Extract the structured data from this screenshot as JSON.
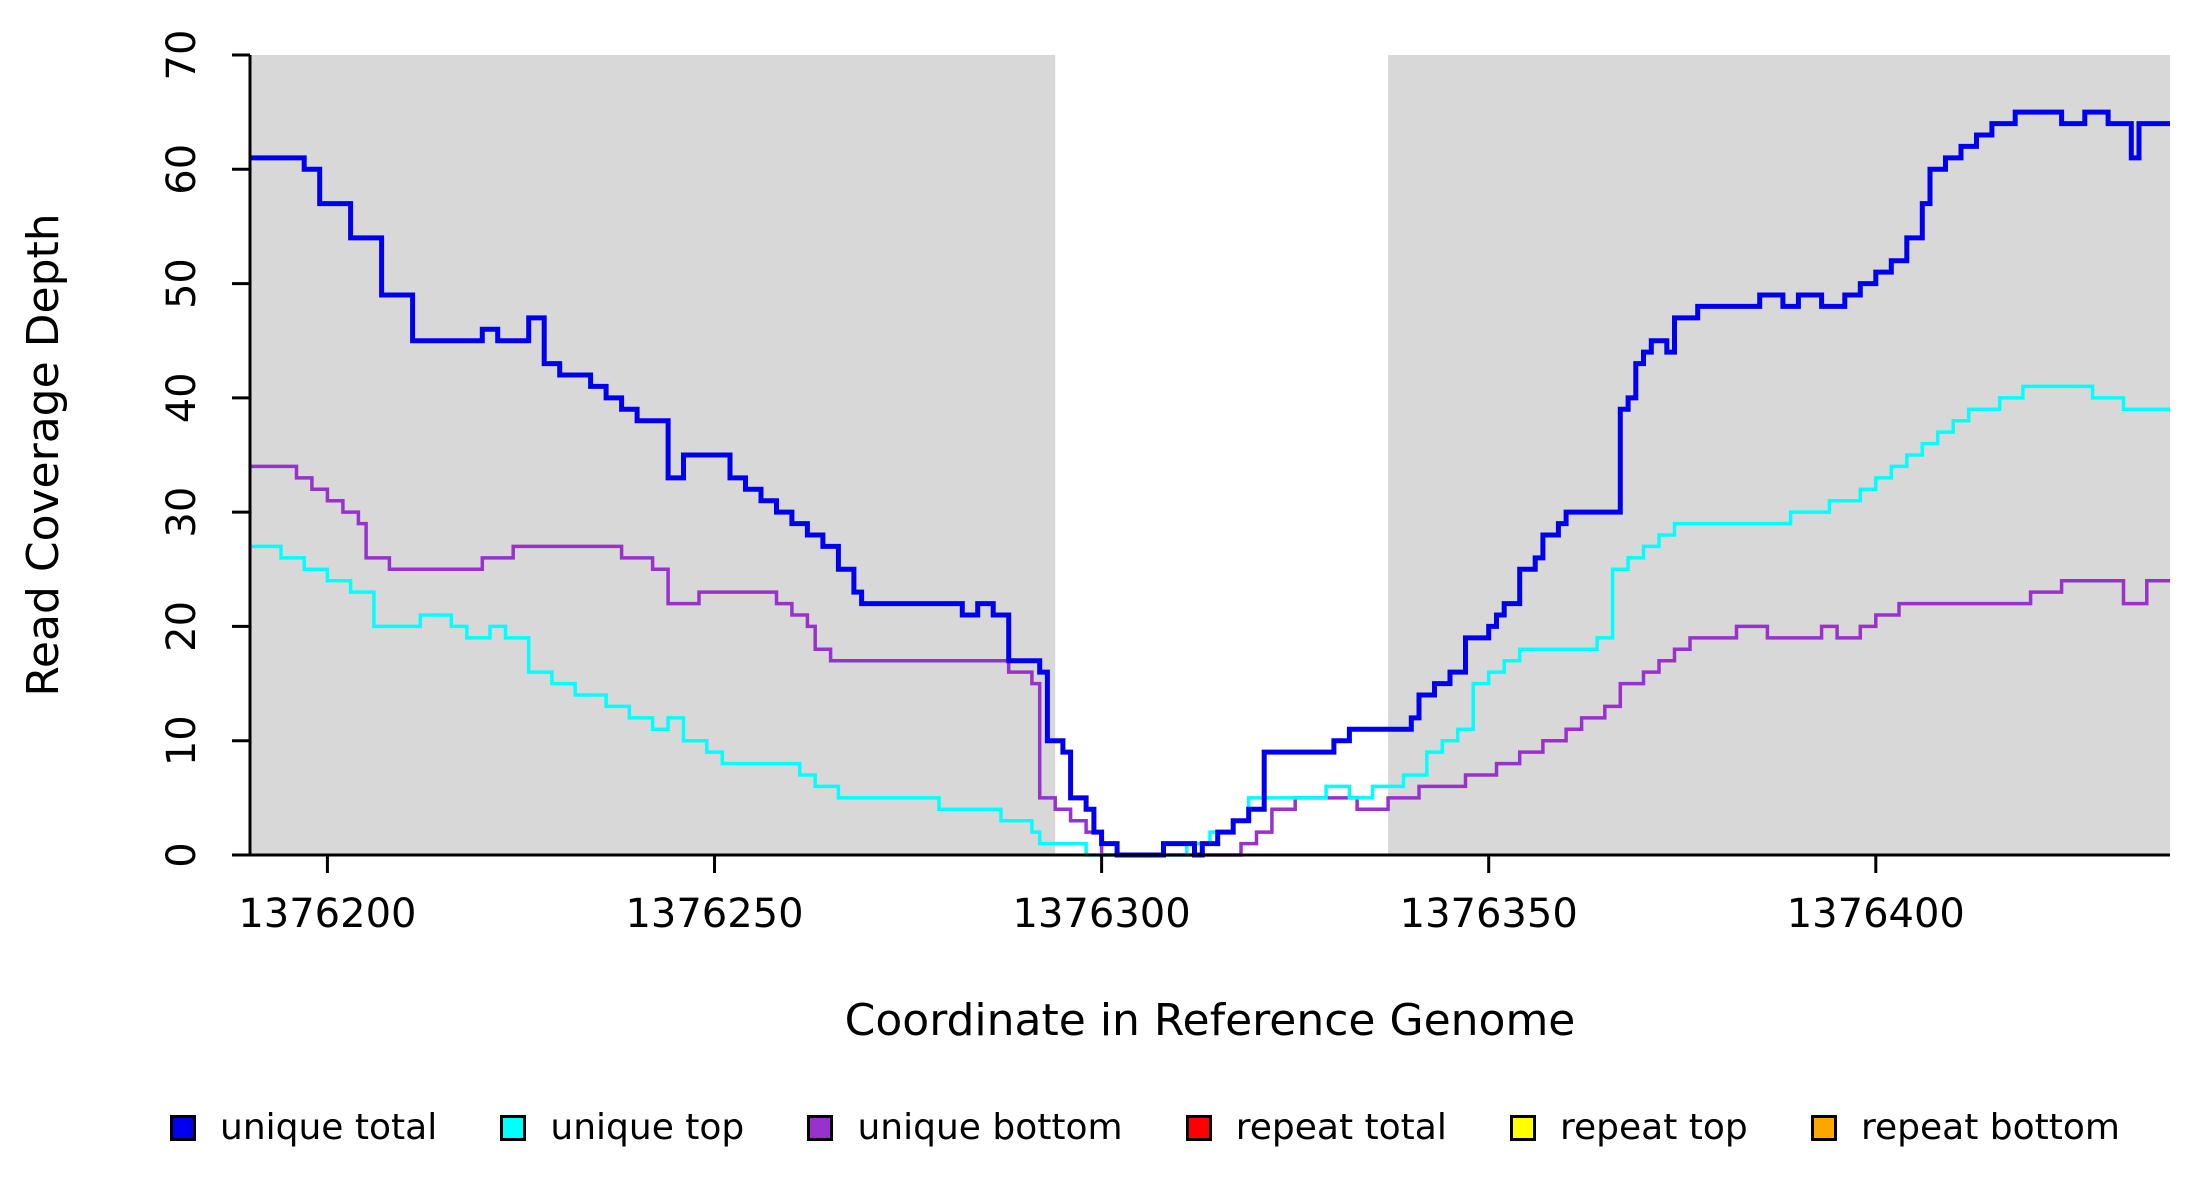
{
  "chart_data": {
    "type": "line",
    "subtype": "step",
    "title": "",
    "xlabel": "Coordinate in Reference Genome",
    "ylabel": "Read Coverage Depth",
    "xlim": [
      1376190,
      1376438
    ],
    "ylim": [
      0,
      70
    ],
    "x_ticks": [
      1376200,
      1376250,
      1376300,
      1376350,
      1376400
    ],
    "y_ticks": [
      0,
      10,
      20,
      30,
      40,
      50,
      60,
      70
    ],
    "grid": false,
    "background_color": "#FFFFFF",
    "axis_color": "#000000",
    "legend_position": "bottom",
    "shaded_regions": [
      {
        "x0": 1376190,
        "x1": 1376294,
        "color": "#D8D8D8"
      },
      {
        "x0": 1376337,
        "x1": 1376438,
        "color": "#D8D8D8"
      }
    ],
    "series": [
      {
        "name": "repeat total",
        "color": "#FF0000",
        "line_width": 3,
        "points": [
          [
            1376190,
            0
          ],
          [
            1376438,
            0
          ]
        ]
      },
      {
        "name": "repeat top",
        "color": "#FFFF00",
        "line_width": 3,
        "points": [
          [
            1376190,
            0
          ],
          [
            1376438,
            0
          ]
        ]
      },
      {
        "name": "repeat bottom",
        "color": "#FFA500",
        "line_width": 3,
        "points": [
          [
            1376190,
            0
          ],
          [
            1376438,
            0
          ]
        ]
      },
      {
        "name": "unique bottom",
        "color": "#9932CC",
        "line_width": 3.5,
        "points": [
          [
            1376190,
            34
          ],
          [
            1376196,
            33
          ],
          [
            1376198,
            32
          ],
          [
            1376200,
            31
          ],
          [
            1376202,
            30
          ],
          [
            1376204,
            29
          ],
          [
            1376205,
            26
          ],
          [
            1376208,
            25
          ],
          [
            1376220,
            26
          ],
          [
            1376224,
            27
          ],
          [
            1376238,
            26
          ],
          [
            1376242,
            25
          ],
          [
            1376244,
            22
          ],
          [
            1376248,
            23
          ],
          [
            1376258,
            22
          ],
          [
            1376260,
            21
          ],
          [
            1376262,
            20
          ],
          [
            1376263,
            18
          ],
          [
            1376265,
            17
          ],
          [
            1376288,
            16
          ],
          [
            1376291,
            15
          ],
          [
            1376292,
            5
          ],
          [
            1376294,
            4
          ],
          [
            1376296,
            3
          ],
          [
            1376298,
            2
          ],
          [
            1376300,
            0
          ],
          [
            1376318,
            1
          ],
          [
            1376320,
            2
          ],
          [
            1376322,
            4
          ],
          [
            1376325,
            5
          ],
          [
            1376333,
            4
          ],
          [
            1376337,
            5
          ],
          [
            1376341,
            6
          ],
          [
            1376347,
            7
          ],
          [
            1376351,
            8
          ],
          [
            1376354,
            9
          ],
          [
            1376357,
            10
          ],
          [
            1376360,
            11
          ],
          [
            1376362,
            12
          ],
          [
            1376365,
            13
          ],
          [
            1376367,
            15
          ],
          [
            1376370,
            16
          ],
          [
            1376372,
            17
          ],
          [
            1376374,
            18
          ],
          [
            1376376,
            19
          ],
          [
            1376382,
            20
          ],
          [
            1376386,
            19
          ],
          [
            1376393,
            20
          ],
          [
            1376395,
            19
          ],
          [
            1376398,
            20
          ],
          [
            1376400,
            21
          ],
          [
            1376403,
            22
          ],
          [
            1376420,
            23
          ],
          [
            1376424,
            24
          ],
          [
            1376432,
            22
          ],
          [
            1376435,
            24
          ],
          [
            1376438,
            24
          ]
        ]
      },
      {
        "name": "unique top",
        "color": "#00FFFF",
        "line_width": 3.5,
        "points": [
          [
            1376190,
            27
          ],
          [
            1376194,
            26
          ],
          [
            1376197,
            25
          ],
          [
            1376200,
            24
          ],
          [
            1376203,
            23
          ],
          [
            1376206,
            20
          ],
          [
            1376212,
            21
          ],
          [
            1376216,
            20
          ],
          [
            1376218,
            19
          ],
          [
            1376221,
            20
          ],
          [
            1376223,
            19
          ],
          [
            1376226,
            16
          ],
          [
            1376229,
            15
          ],
          [
            1376232,
            14
          ],
          [
            1376236,
            13
          ],
          [
            1376239,
            12
          ],
          [
            1376242,
            11
          ],
          [
            1376244,
            12
          ],
          [
            1376246,
            10
          ],
          [
            1376249,
            9
          ],
          [
            1376251,
            8
          ],
          [
            1376261,
            7
          ],
          [
            1376263,
            6
          ],
          [
            1376266,
            5
          ],
          [
            1376279,
            4
          ],
          [
            1376287,
            3
          ],
          [
            1376291,
            2
          ],
          [
            1376292,
            1
          ],
          [
            1376298,
            0
          ],
          [
            1376311,
            1
          ],
          [
            1376314,
            2
          ],
          [
            1376317,
            3
          ],
          [
            1376319,
            5
          ],
          [
            1376329,
            6
          ],
          [
            1376332,
            5
          ],
          [
            1376335,
            6
          ],
          [
            1376339,
            7
          ],
          [
            1376342,
            9
          ],
          [
            1376344,
            10
          ],
          [
            1376346,
            11
          ],
          [
            1376348,
            15
          ],
          [
            1376350,
            16
          ],
          [
            1376352,
            17
          ],
          [
            1376354,
            18
          ],
          [
            1376364,
            19
          ],
          [
            1376366,
            25
          ],
          [
            1376368,
            26
          ],
          [
            1376370,
            27
          ],
          [
            1376372,
            28
          ],
          [
            1376374,
            29
          ],
          [
            1376389,
            30
          ],
          [
            1376394,
            31
          ],
          [
            1376398,
            32
          ],
          [
            1376400,
            33
          ],
          [
            1376402,
            34
          ],
          [
            1376404,
            35
          ],
          [
            1376406,
            36
          ],
          [
            1376408,
            37
          ],
          [
            1376410,
            38
          ],
          [
            1376412,
            39
          ],
          [
            1376416,
            40
          ],
          [
            1376419,
            41
          ],
          [
            1376428,
            40
          ],
          [
            1376432,
            39
          ],
          [
            1376438,
            39
          ]
        ]
      },
      {
        "name": "unique total",
        "color": "#0000EE",
        "line_width": 5,
        "points": [
          [
            1376190,
            61
          ],
          [
            1376197,
            60
          ],
          [
            1376199,
            57
          ],
          [
            1376203,
            54
          ],
          [
            1376207,
            49
          ],
          [
            1376211,
            45
          ],
          [
            1376220,
            46
          ],
          [
            1376222,
            45
          ],
          [
            1376226,
            47
          ],
          [
            1376228,
            43
          ],
          [
            1376230,
            42
          ],
          [
            1376234,
            41
          ],
          [
            1376236,
            40
          ],
          [
            1376238,
            39
          ],
          [
            1376240,
            38
          ],
          [
            1376244,
            33
          ],
          [
            1376246,
            35
          ],
          [
            1376252,
            33
          ],
          [
            1376254,
            32
          ],
          [
            1376256,
            31
          ],
          [
            1376258,
            30
          ],
          [
            1376260,
            29
          ],
          [
            1376262,
            28
          ],
          [
            1376264,
            27
          ],
          [
            1376266,
            25
          ],
          [
            1376268,
            23
          ],
          [
            1376269,
            22
          ],
          [
            1376282,
            21
          ],
          [
            1376284,
            22
          ],
          [
            1376286,
            21
          ],
          [
            1376288,
            17
          ],
          [
            1376292,
            16
          ],
          [
            1376293,
            10
          ],
          [
            1376295,
            9
          ],
          [
            1376296,
            5
          ],
          [
            1376298,
            4
          ],
          [
            1376299,
            2
          ],
          [
            1376300,
            1
          ],
          [
            1376302,
            0
          ],
          [
            1376308,
            1
          ],
          [
            1376312,
            0
          ],
          [
            1376313,
            1
          ],
          [
            1376315,
            2
          ],
          [
            1376317,
            3
          ],
          [
            1376319,
            4
          ],
          [
            1376321,
            9
          ],
          [
            1376330,
            10
          ],
          [
            1376332,
            11
          ],
          [
            1376340,
            12
          ],
          [
            1376341,
            14
          ],
          [
            1376343,
            15
          ],
          [
            1376345,
            16
          ],
          [
            1376347,
            19
          ],
          [
            1376350,
            20
          ],
          [
            1376351,
            21
          ],
          [
            1376352,
            22
          ],
          [
            1376354,
            25
          ],
          [
            1376356,
            26
          ],
          [
            1376357,
            28
          ],
          [
            1376359,
            29
          ],
          [
            1376360,
            30
          ],
          [
            1376367,
            39
          ],
          [
            1376368,
            40
          ],
          [
            1376369,
            43
          ],
          [
            1376370,
            44
          ],
          [
            1376371,
            45
          ],
          [
            1376373,
            44
          ],
          [
            1376374,
            47
          ],
          [
            1376377,
            48
          ],
          [
            1376385,
            49
          ],
          [
            1376388,
            48
          ],
          [
            1376390,
            49
          ],
          [
            1376393,
            48
          ],
          [
            1376396,
            49
          ],
          [
            1376398,
            50
          ],
          [
            1376400,
            51
          ],
          [
            1376402,
            52
          ],
          [
            1376404,
            54
          ],
          [
            1376406,
            57
          ],
          [
            1376407,
            60
          ],
          [
            1376409,
            61
          ],
          [
            1376411,
            62
          ],
          [
            1376413,
            63
          ],
          [
            1376415,
            64
          ],
          [
            1376418,
            65
          ],
          [
            1376424,
            64
          ],
          [
            1376427,
            65
          ],
          [
            1376430,
            64
          ],
          [
            1376433,
            61
          ],
          [
            1376434,
            64
          ],
          [
            1376438,
            64
          ]
        ]
      }
    ],
    "legend_items": [
      {
        "label": "unique total",
        "color": "#0000EE"
      },
      {
        "label": "unique top",
        "color": "#00FFFF"
      },
      {
        "label": "unique bottom",
        "color": "#9932CC"
      },
      {
        "label": "repeat total",
        "color": "#FF0000"
      },
      {
        "label": "repeat top",
        "color": "#FFFF00"
      },
      {
        "label": "repeat bottom",
        "color": "#FFA500"
      }
    ]
  }
}
